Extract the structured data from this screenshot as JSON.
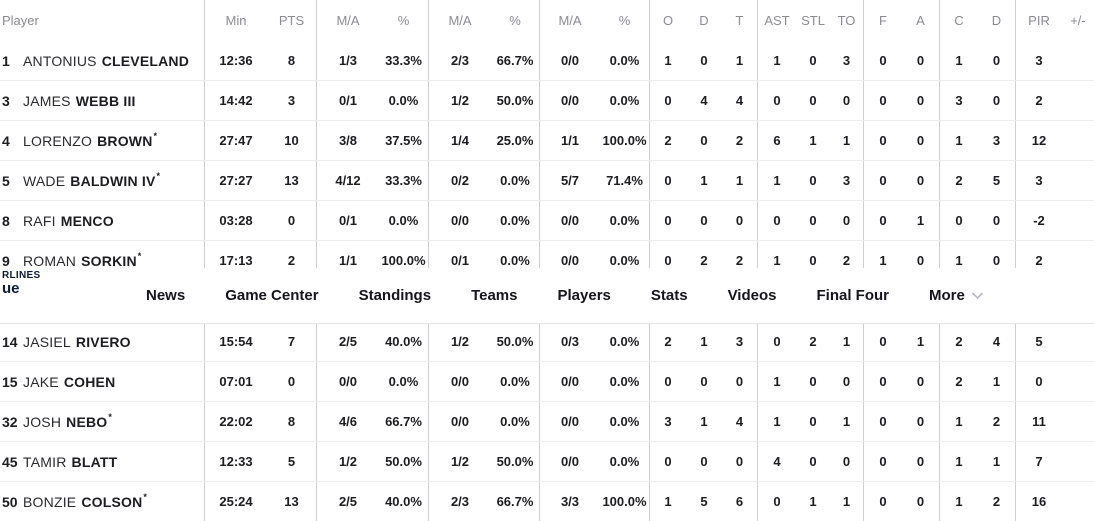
{
  "colors": {
    "logo_navy": "#0c1a33",
    "header_text_gray": "#8b8b92",
    "body_text": "#1d1d21",
    "column_line": "#cfcfd2",
    "row_line": "#ededef"
  },
  "nav": {
    "logo": {
      "line1": "RLINES",
      "line2": "ue"
    },
    "items": [
      {
        "label": "News",
        "chevron": false
      },
      {
        "label": "Game Center",
        "chevron": false
      },
      {
        "label": "Standings",
        "chevron": false
      },
      {
        "label": "Teams",
        "chevron": false
      },
      {
        "label": "Players",
        "chevron": false
      },
      {
        "label": "Stats",
        "chevron": false
      },
      {
        "label": "Videos",
        "chevron": false
      },
      {
        "label": "Final Four",
        "chevron": false
      },
      {
        "label": "More",
        "chevron": true
      }
    ]
  },
  "table": {
    "columns": [
      "Player",
      "Min",
      "PTS",
      "M/A",
      "%",
      "M/A",
      "%",
      "M/A",
      "%",
      "O",
      "D",
      "T",
      "AST",
      "STL",
      "TO",
      "F",
      "A",
      "C",
      "D",
      "PIR",
      "+/-"
    ],
    "rows_top": [
      {
        "num": "1",
        "first": "ANTONIUS",
        "last": "CLEVELAND",
        "star": "",
        "stats": [
          "12:36",
          "8",
          "1/3",
          "33.3%",
          "2/3",
          "66.7%",
          "0/0",
          "0.0%",
          "1",
          "0",
          "1",
          "1",
          "0",
          "3",
          "0",
          "0",
          "1",
          "0",
          "3",
          ""
        ]
      },
      {
        "num": "3",
        "first": "JAMES",
        "last": "WEBB III",
        "star": "",
        "stats": [
          "14:42",
          "3",
          "0/1",
          "0.0%",
          "1/2",
          "50.0%",
          "0/0",
          "0.0%",
          "0",
          "4",
          "4",
          "0",
          "0",
          "0",
          "0",
          "0",
          "3",
          "0",
          "2",
          ""
        ]
      },
      {
        "num": "4",
        "first": "LORENZO",
        "last": "BROWN",
        "star": "*",
        "stats": [
          "27:47",
          "10",
          "3/8",
          "37.5%",
          "1/4",
          "25.0%",
          "1/1",
          "100.0%",
          "2",
          "0",
          "2",
          "6",
          "1",
          "1",
          "0",
          "0",
          "1",
          "3",
          "12",
          ""
        ]
      },
      {
        "num": "5",
        "first": "WADE",
        "last": "BALDWIN IV",
        "star": "*",
        "stats": [
          "27:27",
          "13",
          "4/12",
          "33.3%",
          "0/2",
          "0.0%",
          "5/7",
          "71.4%",
          "0",
          "1",
          "1",
          "1",
          "0",
          "3",
          "0",
          "0",
          "2",
          "5",
          "3",
          ""
        ]
      },
      {
        "num": "8",
        "first": "RAFI",
        "last": "MENCO",
        "star": "",
        "stats": [
          "03:28",
          "0",
          "0/1",
          "0.0%",
          "0/0",
          "0.0%",
          "0/0",
          "0.0%",
          "0",
          "0",
          "0",
          "0",
          "0",
          "0",
          "0",
          "1",
          "0",
          "0",
          "-2",
          ""
        ]
      },
      {
        "num": "9",
        "first": "ROMAN",
        "last": "SORKIN",
        "star": "*",
        "stats": [
          "17:13",
          "2",
          "1/1",
          "100.0%",
          "0/1",
          "0.0%",
          "0/0",
          "0.0%",
          "0",
          "2",
          "2",
          "1",
          "0",
          "2",
          "1",
          "0",
          "1",
          "0",
          "2",
          ""
        ]
      }
    ],
    "rows_bottom": [
      {
        "num": "14",
        "first": "JASIEL",
        "last": "RIVERO",
        "star": "",
        "stats": [
          "15:54",
          "7",
          "2/5",
          "40.0%",
          "1/2",
          "50.0%",
          "0/3",
          "0.0%",
          "2",
          "1",
          "3",
          "0",
          "2",
          "1",
          "0",
          "1",
          "2",
          "4",
          "5",
          ""
        ]
      },
      {
        "num": "15",
        "first": "JAKE",
        "last": "COHEN",
        "star": "",
        "stats": [
          "07:01",
          "0",
          "0/0",
          "0.0%",
          "0/0",
          "0.0%",
          "0/0",
          "0.0%",
          "0",
          "0",
          "0",
          "1",
          "0",
          "0",
          "0",
          "0",
          "2",
          "1",
          "0",
          ""
        ]
      },
      {
        "num": "32",
        "first": "JOSH",
        "last": "NEBO",
        "star": "*",
        "stats": [
          "22:02",
          "8",
          "4/6",
          "66.7%",
          "0/0",
          "0.0%",
          "0/0",
          "0.0%",
          "3",
          "1",
          "4",
          "1",
          "0",
          "1",
          "0",
          "0",
          "1",
          "2",
          "11",
          ""
        ]
      },
      {
        "num": "45",
        "first": "TAMIR",
        "last": "BLATT",
        "star": "",
        "stats": [
          "12:33",
          "5",
          "1/2",
          "50.0%",
          "1/2",
          "50.0%",
          "0/0",
          "0.0%",
          "0",
          "0",
          "0",
          "4",
          "0",
          "0",
          "0",
          "0",
          "1",
          "1",
          "7",
          ""
        ]
      },
      {
        "num": "50",
        "first": "BONZIE",
        "last": "COLSON",
        "star": "*",
        "stats": [
          "25:24",
          "13",
          "2/5",
          "40.0%",
          "2/3",
          "66.7%",
          "3/3",
          "100.0%",
          "1",
          "5",
          "6",
          "0",
          "1",
          "1",
          "0",
          "0",
          "1",
          "2",
          "16",
          ""
        ]
      }
    ]
  }
}
